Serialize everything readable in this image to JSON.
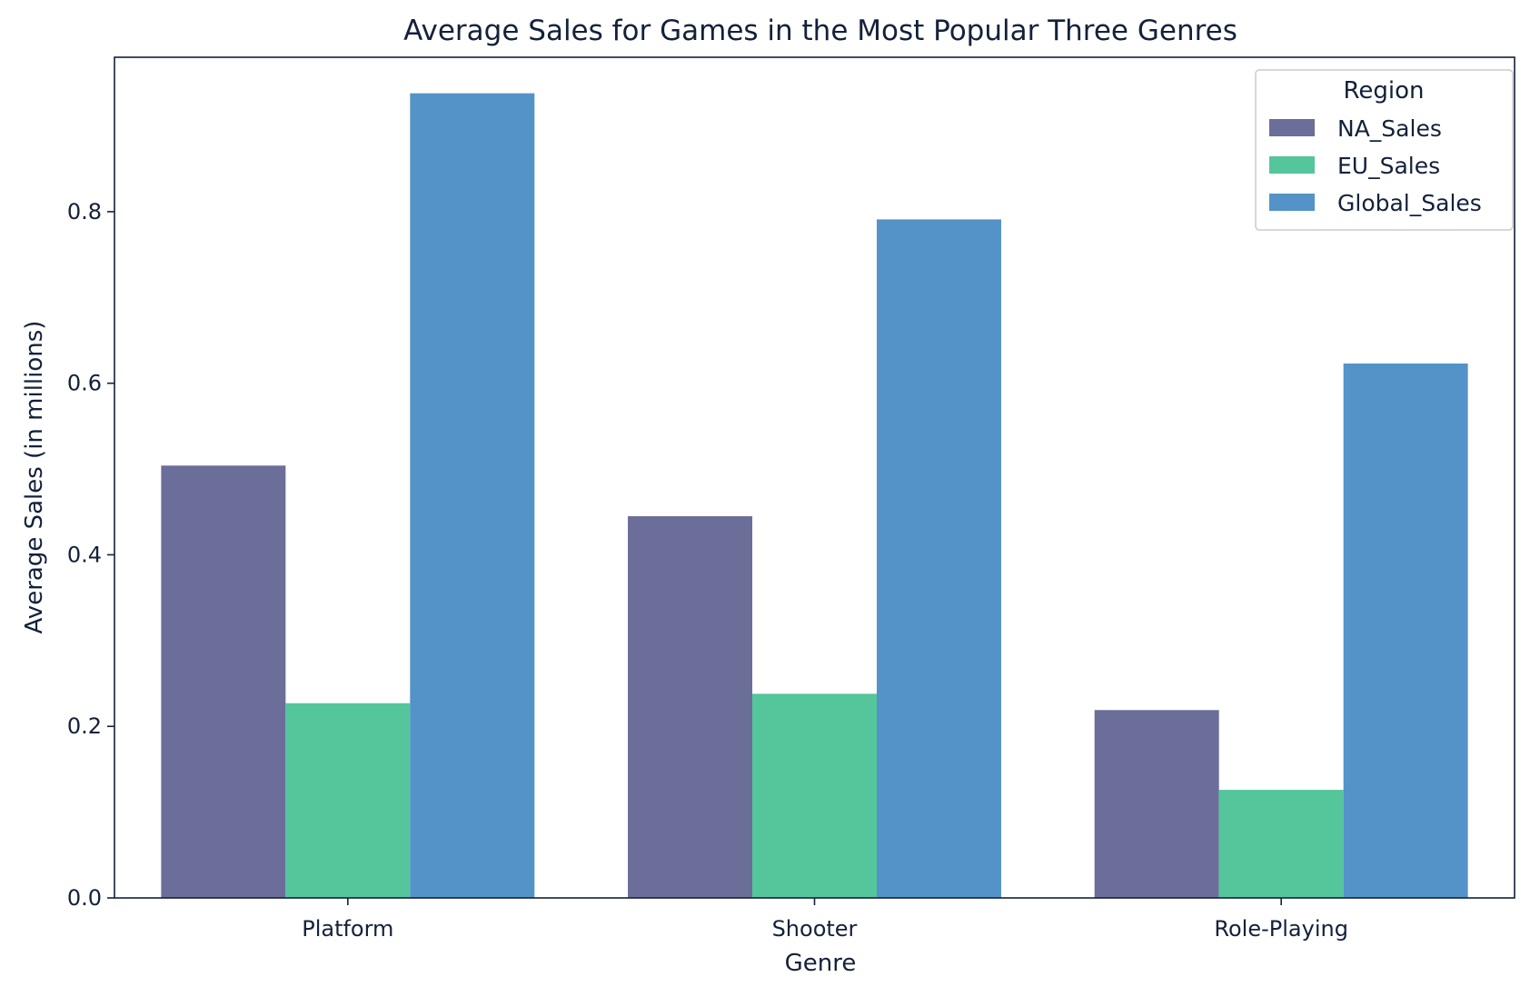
{
  "chart_data": {
    "type": "bar",
    "title": "Average Sales for Games in the Most Popular Three Genres",
    "xlabel": "Genre",
    "ylabel": "Average Sales (in millions)",
    "categories": [
      "Platform",
      "Shooter",
      "Role-Playing"
    ],
    "series": [
      {
        "name": "NA_Sales",
        "color": "#6b6e99",
        "values": [
          0.504,
          0.445,
          0.219
        ]
      },
      {
        "name": "EU_Sales",
        "color": "#55c59b",
        "values": [
          0.227,
          0.238,
          0.126
        ]
      },
      {
        "name": "Global_Sales",
        "color": "#5393c7",
        "values": [
          0.938,
          0.791,
          0.623
        ]
      }
    ],
    "ylim": [
      0,
      0.98
    ],
    "yticks": [
      0.0,
      0.2,
      0.4,
      0.6,
      0.8
    ],
    "ytick_labels": [
      "0.0",
      "0.2",
      "0.4",
      "0.6",
      "0.8"
    ],
    "grid": false,
    "legend": {
      "title": "Region",
      "position": "top-right"
    }
  }
}
